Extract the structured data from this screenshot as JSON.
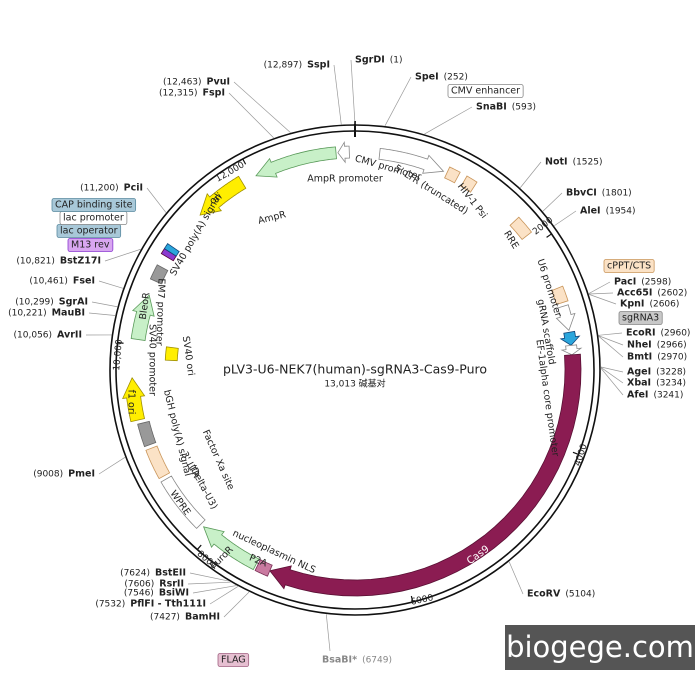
{
  "title": "pLV3-U6-NEK7(human)-sgRNA3-Cas9-Puro",
  "size": "13,013 碱基对",
  "sites": [
    {
      "name": "SspI",
      "position": "(12,897)"
    },
    {
      "name": "SgrDI",
      "position": "(1)"
    },
    {
      "name": "SpeI",
      "position": "(252)"
    },
    {
      "name": "SnaBI",
      "position": "(593)"
    },
    {
      "name": "NotI",
      "position": "(1525)"
    },
    {
      "name": "BbvCI",
      "position": "(1801)"
    },
    {
      "name": "AleI",
      "position": "(1954)"
    },
    {
      "name": "PacI",
      "position": "(2598)"
    },
    {
      "name": "Acc65I",
      "position": "(2602)"
    },
    {
      "name": "KpnI",
      "position": "(2606)"
    },
    {
      "name": "EcoRI",
      "position": "(2960)"
    },
    {
      "name": "NheI",
      "position": "(2966)"
    },
    {
      "name": "BmtI",
      "position": "(2970)"
    },
    {
      "name": "AgeI",
      "position": "(3228)"
    },
    {
      "name": "XbaI",
      "position": "(3234)"
    },
    {
      "name": "AfeI",
      "position": "(3241)"
    },
    {
      "name": "EcoRV",
      "position": "(5104)"
    },
    {
      "name": "BsaBI*",
      "position": "(6749)"
    },
    {
      "name": "BamHI",
      "position": "(7427)"
    },
    {
      "name": "PflFI - Tth111I",
      "position": "(7532)"
    },
    {
      "name": "BsiWI",
      "position": "(7546)"
    },
    {
      "name": "RsrII",
      "position": "(7606)"
    },
    {
      "name": "BstEII",
      "position": "(7624)"
    },
    {
      "name": "PmeI",
      "position": "(9008)"
    },
    {
      "name": "AvrII",
      "position": "(10,056)"
    },
    {
      "name": "MauBI",
      "position": "(10,221)"
    },
    {
      "name": "SgrAI",
      "position": "(10,299)"
    },
    {
      "name": "FseI",
      "position": "(10,461)"
    },
    {
      "name": "BstZ17I",
      "position": "(10,821)"
    },
    {
      "name": "PciI",
      "position": "(11,200)"
    },
    {
      "name": "FspI",
      "position": "(12,315)"
    },
    {
      "name": "PvuI",
      "position": "(12,463)"
    }
  ],
  "features": [
    "CMV enhancer",
    "CMV promoter",
    "5' LTR (truncated)",
    "HIV-1 Psi",
    "RRE",
    "cPPT/CTS",
    "U6 promoter",
    "sgRNA3",
    "gRNA scaffold",
    "EF-1alpha core promoter",
    "Cas9",
    "nucleoplasmin NLS",
    "P2A",
    "FLAG",
    "PuroR",
    "WPRE",
    "3' LTR",
    "(Delta-U3)",
    "Factor Xa site",
    "bGH poly(A) signal",
    "f1 ori",
    "SV40 promoter",
    "EM7 promoter",
    "BleoR",
    "SV40 ori",
    "SV40 poly(A) signal",
    "M13 rev",
    "lac operator",
    "lac promoter",
    "CAP binding site",
    "ori",
    "AmpR",
    "AmpR promoter"
  ],
  "scale_labels": [
    "2000",
    "4000",
    "6000",
    "8000",
    "10,000",
    "12,000"
  ],
  "watermark": "biogege.com"
}
